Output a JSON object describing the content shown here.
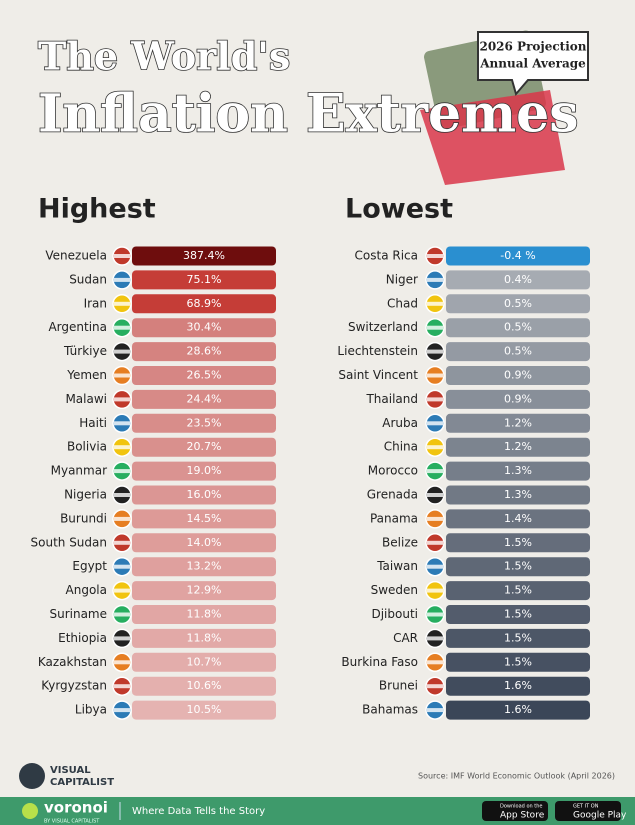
{
  "header": {
    "title_line1": "The World's",
    "title_line2": "Inflation Extremes",
    "badge_line1": "2026 Projection",
    "badge_line2": "Annual Average"
  },
  "highest": {
    "heading": "Highest",
    "rows": [
      [
        "Venezuela",
        "387.4%"
      ],
      [
        "Sudan",
        "75.1%"
      ],
      [
        "Iran",
        "68.9%"
      ],
      [
        "Argentina",
        "30.4%"
      ],
      [
        "Türkiye",
        "28.6%"
      ],
      [
        "Yemen",
        "26.5%"
      ],
      [
        "Malawi",
        "24.4%"
      ],
      [
        "Haiti",
        "23.5%"
      ],
      [
        "Bolivia",
        "20.7%"
      ],
      [
        "Myanmar",
        "19.0%"
      ],
      [
        "Nigeria",
        "16.0%"
      ],
      [
        "Burundi",
        "14.5%"
      ],
      [
        "South Sudan",
        "14.0%"
      ],
      [
        "Egypt",
        "13.2%"
      ],
      [
        "Angola",
        "12.9%"
      ],
      [
        "Suriname",
        "11.8%"
      ],
      [
        "Ethiopia",
        "11.8%"
      ],
      [
        "Kazakhstan",
        "10.7%"
      ],
      [
        "Kyrgyzstan",
        "10.6%"
      ],
      [
        "Libya",
        "10.5%"
      ]
    ]
  },
  "lowest": {
    "heading": "Lowest",
    "rows": [
      [
        "Costa Rica",
        "-0.4 %"
      ],
      [
        "Niger",
        "0.4%"
      ],
      [
        "Chad",
        "0.5%"
      ],
      [
        "Switzerland",
        "0.5%"
      ],
      [
        "Liechtenstein",
        "0.5%"
      ],
      [
        "Saint Vincent",
        "0.9%"
      ],
      [
        "Thailand",
        "0.9%"
      ],
      [
        "Aruba",
        "1.2%"
      ],
      [
        "China",
        "1.2%"
      ],
      [
        "Morocco",
        "1.3%"
      ],
      [
        "Grenada",
        "1.3%"
      ],
      [
        "Panama",
        "1.4%"
      ],
      [
        "Belize",
        "1.5%"
      ],
      [
        "Taiwan",
        "1.5%"
      ],
      [
        "Sweden",
        "1.5%"
      ],
      [
        "Djibouti",
        "1.5%"
      ],
      [
        "CAR",
        "1.5%"
      ],
      [
        "Burkina Faso",
        "1.5%"
      ],
      [
        "Brunei",
        "1.6%"
      ],
      [
        "Bahamas",
        "1.6%"
      ]
    ]
  },
  "footer": {
    "brand_top": "VISUAL",
    "brand_bottom": "CAPITALIST",
    "source": "Source: IMF World Economic Outlook (April 2026)",
    "app": "voronoi",
    "app_sub": "BY VISUAL CAPITALIST",
    "tagline": "Where Data Tells the Story",
    "store1_small": "Download on the",
    "store1": "App Store",
    "store2_small": "GET IT ON",
    "store2": "Google Play"
  }
}
